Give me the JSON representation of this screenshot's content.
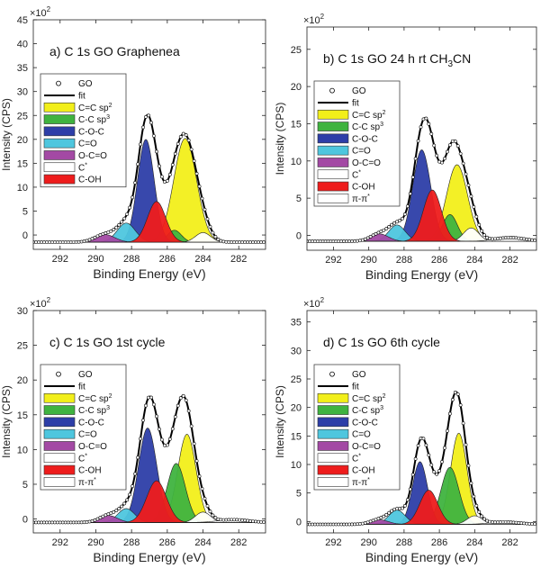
{
  "legend_entries": [
    {
      "label": "GO",
      "kind": "marker",
      "color": "#ffffff"
    },
    {
      "label": "fit",
      "kind": "line",
      "color": "#000000"
    },
    {
      "label": "C=C sp",
      "sup": "2",
      "kind": "swatch",
      "color": "#f2ef1a"
    },
    {
      "label": "C-C sp",
      "sup": "3",
      "kind": "swatch",
      "color": "#3fb33f"
    },
    {
      "label": "C-O-C",
      "kind": "swatch",
      "color": "#2d3ea8"
    },
    {
      "label": "C=O",
      "kind": "swatch",
      "color": "#4ec6de"
    },
    {
      "label": "O-C=O",
      "kind": "swatch",
      "color": "#a349a4"
    },
    {
      "label": "C",
      "sup": "*",
      "kind": "swatch",
      "color": "#ffffff"
    },
    {
      "label": "C-OH",
      "kind": "swatch",
      "color": "#ee1c1c"
    },
    {
      "label": "π-π",
      "sup": "*",
      "kind": "swatch",
      "color": "#ffffff"
    }
  ],
  "chart_data": [
    {
      "type": "area",
      "title": "a) C 1s GO Graphenea",
      "xlabel": "Binding Energy (eV)",
      "ylabel": "Intensity (CPS)",
      "y_multiplier_label": "×10",
      "y_multiplier_exp": "2",
      "x_ticks": [
        292,
        290,
        288,
        286,
        284,
        282
      ],
      "xlim": [
        293.5,
        280.5
      ],
      "y_ticks": [
        0,
        5,
        10,
        15,
        20,
        25,
        30,
        35,
        40,
        45
      ],
      "ylim": [
        -3,
        45
      ],
      "baseline": -1.5,
      "legend_count": 9,
      "components": [
        {
          "name": "C=C sp2",
          "color": "#f2ef1a",
          "center": 285.0,
          "height": 21.7,
          "fwhm": 1.5
        },
        {
          "name": "C-C sp3",
          "color": "#3fb33f",
          "center": 285.6,
          "height": 2.5,
          "fwhm": 0.9
        },
        {
          "name": "C-O-C",
          "color": "#2d3ea8",
          "center": 287.2,
          "height": 21.5,
          "fwhm": 1.1
        },
        {
          "name": "C=O",
          "color": "#4ec6de",
          "center": 288.3,
          "height": 4.0,
          "fwhm": 1.2
        },
        {
          "name": "O-C=O",
          "color": "#a349a4",
          "center": 289.5,
          "height": 1.6,
          "fwhm": 1.3
        },
        {
          "name": "C*",
          "color": "#ffffff",
          "center": 284.0,
          "height": 2.0,
          "fwhm": 1.0
        },
        {
          "name": "C-OH",
          "color": "#ee1c1c",
          "center": 286.6,
          "height": 8.5,
          "fwhm": 1.2
        }
      ]
    },
    {
      "type": "area",
      "title": "b) C 1s GO 24 h rt CH",
      "title_sub": "3",
      "title_tail": "CN",
      "xlabel": "Binding Energy (eV)",
      "ylabel": "Intensity (CPS)",
      "y_multiplier_label": "×10",
      "y_multiplier_exp": "2",
      "x_ticks": [
        292,
        290,
        288,
        286,
        284,
        282
      ],
      "xlim": [
        293.5,
        280.5
      ],
      "y_ticks": [
        0,
        5,
        10,
        15,
        20,
        25
      ],
      "ylim": [
        -2,
        28
      ],
      "baseline": -0.8,
      "legend_count": 10,
      "components": [
        {
          "name": "C=C sp2",
          "color": "#f2ef1a",
          "center": 285.0,
          "height": 10.3,
          "fwhm": 1.4
        },
        {
          "name": "C-C sp3",
          "color": "#3fb33f",
          "center": 285.4,
          "height": 3.6,
          "fwhm": 1.0
        },
        {
          "name": "C-O-C",
          "color": "#2d3ea8",
          "center": 287.0,
          "height": 12.3,
          "fwhm": 1.2
        },
        {
          "name": "C=O",
          "color": "#4ec6de",
          "center": 288.4,
          "height": 2.2,
          "fwhm": 1.1
        },
        {
          "name": "O-C=O",
          "color": "#a349a4",
          "center": 289.4,
          "height": 1.0,
          "fwhm": 1.2
        },
        {
          "name": "C*",
          "color": "#ffffff",
          "center": 284.2,
          "height": 1.8,
          "fwhm": 1.0
        },
        {
          "name": "C-OH",
          "color": "#ee1c1c",
          "center": 286.4,
          "height": 6.9,
          "fwhm": 1.2
        },
        {
          "name": "π-π*",
          "color": "#ffffff",
          "center": 282.0,
          "height": 0.5,
          "fwhm": 2.0
        }
      ]
    },
    {
      "type": "area",
      "title": "c) C 1s GO 1st cycle",
      "xlabel": "Binding Energy (eV)",
      "ylabel": "Intensity (CPS)",
      "y_multiplier_label": "×10",
      "y_multiplier_exp": "2",
      "x_ticks": [
        292,
        290,
        288,
        286,
        284,
        282
      ],
      "xlim": [
        293.5,
        280.5
      ],
      "y_ticks": [
        0,
        5,
        10,
        15,
        20,
        25,
        30
      ],
      "ylim": [
        -2,
        30
      ],
      "baseline": -0.5,
      "legend_count": 10,
      "components": [
        {
          "name": "C=C sp2",
          "color": "#f2ef1a",
          "center": 284.9,
          "height": 12.7,
          "fwhm": 1.2
        },
        {
          "name": "C-C sp3",
          "color": "#3fb33f",
          "center": 285.5,
          "height": 8.5,
          "fwhm": 1.2
        },
        {
          "name": "C-O-C",
          "color": "#2d3ea8",
          "center": 287.1,
          "height": 13.6,
          "fwhm": 1.2
        },
        {
          "name": "C=O",
          "color": "#4ec6de",
          "center": 288.3,
          "height": 2.0,
          "fwhm": 1.1
        },
        {
          "name": "O-C=O",
          "color": "#a349a4",
          "center": 289.3,
          "height": 1.0,
          "fwhm": 1.2
        },
        {
          "name": "C*",
          "color": "#ffffff",
          "center": 284.0,
          "height": 1.5,
          "fwhm": 1.0
        },
        {
          "name": "C-OH",
          "color": "#ee1c1c",
          "center": 286.6,
          "height": 6.0,
          "fwhm": 1.3
        },
        {
          "name": "π-π*",
          "color": "#ffffff",
          "center": 282.3,
          "height": 0.4,
          "fwhm": 2.0
        }
      ]
    },
    {
      "type": "area",
      "title": "d) C 1s GO 6th cycle",
      "xlabel": "Binding Energy (eV)",
      "ylabel": "Intensity (CPS)",
      "y_multiplier_label": "×10",
      "y_multiplier_exp": "2",
      "x_ticks": [
        292,
        290,
        288,
        286,
        284,
        282
      ],
      "xlim": [
        293.5,
        280.5
      ],
      "y_ticks": [
        0,
        5,
        10,
        15,
        20,
        25,
        30,
        35
      ],
      "ylim": [
        -2,
        37
      ],
      "baseline": -0.5,
      "legend_count": 10,
      "components": [
        {
          "name": "C=C sp2",
          "color": "#f2ef1a",
          "center": 284.9,
          "height": 16.0,
          "fwhm": 1.1
        },
        {
          "name": "C-C sp3",
          "color": "#3fb33f",
          "center": 285.4,
          "height": 10.0,
          "fwhm": 1.2
        },
        {
          "name": "C-O-C",
          "color": "#2d3ea8",
          "center": 287.1,
          "height": 11.0,
          "fwhm": 1.0
        },
        {
          "name": "C=O",
          "color": "#4ec6de",
          "center": 288.4,
          "height": 2.5,
          "fwhm": 1.1
        },
        {
          "name": "O-C=O",
          "color": "#a349a4",
          "center": 289.4,
          "height": 0.8,
          "fwhm": 1.2
        },
        {
          "name": "C*",
          "color": "#ffffff",
          "center": 284.0,
          "height": 1.5,
          "fwhm": 1.0
        },
        {
          "name": "C-OH",
          "color": "#ee1c1c",
          "center": 286.6,
          "height": 6.0,
          "fwhm": 1.2
        },
        {
          "name": "π-π*",
          "color": "#ffffff",
          "center": 282.3,
          "height": 0.4,
          "fwhm": 2.0
        }
      ]
    }
  ]
}
